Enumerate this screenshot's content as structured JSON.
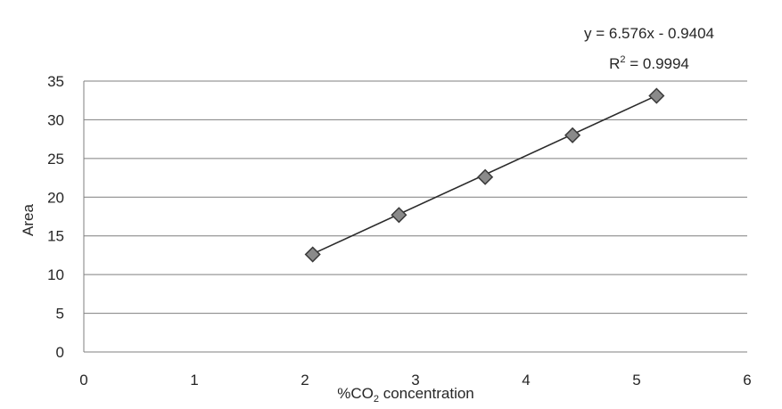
{
  "chart_data": {
    "type": "scatter",
    "title": "",
    "xlabel": "%CO",
    "xlabel_subscript": "2",
    "xlabel_suffix": " concentration",
    "ylabel": "Area",
    "xlim": [
      0,
      6
    ],
    "ylim": [
      0,
      35
    ],
    "x_ticks": [
      "0",
      "1",
      "2",
      "3",
      "4",
      "5",
      "6"
    ],
    "y_ticks": [
      "0",
      "5",
      "10",
      "15",
      "20",
      "25",
      "30",
      "35"
    ],
    "grid": true,
    "points": [
      {
        "x": 2.07,
        "y": 12.6
      },
      {
        "x": 2.85,
        "y": 17.7
      },
      {
        "x": 3.63,
        "y": 22.6
      },
      {
        "x": 4.42,
        "y": 28.0
      },
      {
        "x": 5.18,
        "y": 33.1
      }
    ],
    "trendline": {
      "slope": 6.576,
      "intercept": -0.9404,
      "x_range": [
        2.07,
        5.18
      ],
      "equation": "y = 6.576x - 0.9404",
      "r2_label": "R",
      "r2_sup": "2",
      "r2_value": " = 0.9994"
    },
    "colors": {
      "marker_fill": "#8a8a8a",
      "marker_stroke": "#3a3a3a",
      "trendline": "#2b2b2b",
      "grid": "#7f7f7f"
    }
  }
}
